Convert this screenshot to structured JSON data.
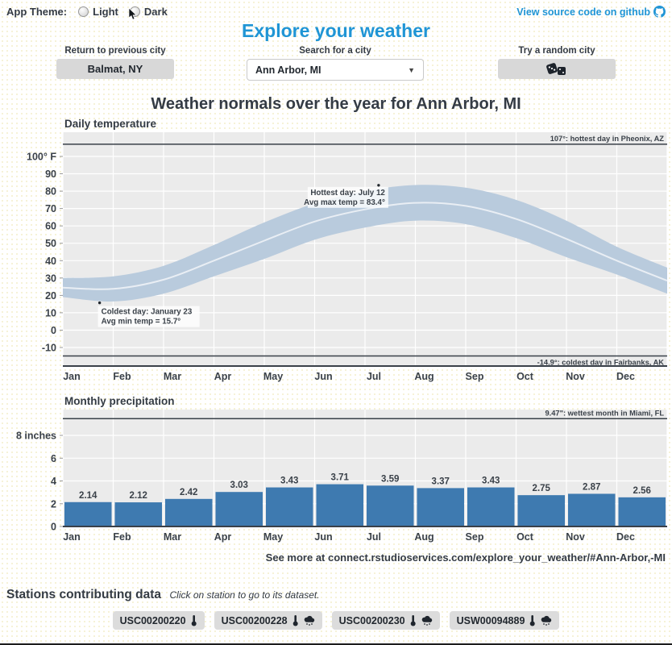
{
  "colors": {
    "accent": "#2095d5",
    "dark_text": "#343b44",
    "plot_bg": "#ebebeb",
    "grid": "#ffffff",
    "band": "#b9cbdd",
    "band_mid_line": "#e9eef4",
    "bar": "#3e7ab0",
    "button_bg": "#d8d8d8",
    "ref_line": "#3a4149"
  },
  "top_bar": {
    "theme_label": "App Theme:",
    "theme_options": [
      {
        "label": "Light"
      },
      {
        "label": "Dark"
      }
    ],
    "source_link": "View source code on github"
  },
  "app_title": "Explore your weather",
  "controls": {
    "previous": {
      "label": "Return to previous city",
      "button_text": "Balmat, NY"
    },
    "search": {
      "label": "Search for a city",
      "selected": "Ann Arbor, MI"
    },
    "random": {
      "label": "Try a random city"
    }
  },
  "page_heading": "Weather normals over the year for Ann Arbor, MI",
  "chart_data": [
    {
      "type": "area",
      "title": "Daily temperature",
      "x_labels": [
        "Jan",
        "Feb",
        "Mar",
        "Apr",
        "May",
        "Jun",
        "Jul",
        "Aug",
        "Sep",
        "Oct",
        "Nov",
        "Dec"
      ],
      "ylim": [
        -20,
        113
      ],
      "yticks": [
        {
          "v": 100,
          "label": "100° F"
        },
        {
          "v": 90,
          "label": "90"
        },
        {
          "v": 80,
          "label": "80"
        },
        {
          "v": 70,
          "label": "70"
        },
        {
          "v": 60,
          "label": "60"
        },
        {
          "v": 50,
          "label": "50"
        },
        {
          "v": 40,
          "label": "40"
        },
        {
          "v": 30,
          "label": "30"
        },
        {
          "v": 20,
          "label": "20"
        },
        {
          "v": 10,
          "label": "10"
        },
        {
          "v": 0,
          "label": "0"
        },
        {
          "v": -10,
          "label": "-10"
        }
      ],
      "series": [
        {
          "name": "avg max temp",
          "month_boundary_values": [
            30,
            31,
            37,
            49,
            62,
            73,
            80,
            83.5,
            82,
            75,
            63,
            48,
            36
          ]
        },
        {
          "name": "avg min temp",
          "month_boundary_values": [
            19,
            16.5,
            21,
            31,
            41,
            52,
            59,
            63,
            61,
            53,
            42,
            32,
            21
          ]
        }
      ],
      "markers": [
        {
          "name": "hottest-day-point",
          "month": 6.27,
          "temp": 83.4
        },
        {
          "name": "coldest-day-point",
          "month": 0.73,
          "temp": 15.7
        }
      ],
      "annotations": [
        {
          "name": "hottest-day-annotation",
          "lines": [
            "Hottest day: July 12",
            "Avg max temp = 83.4°"
          ]
        },
        {
          "name": "coldest-day-annotation",
          "lines": [
            "Coldest day: January 23",
            "Avg min temp = 15.7°"
          ]
        }
      ],
      "ref_lines": [
        {
          "value": 107,
          "label": "107°: hottest day in Pheonix, AZ",
          "label_pos": "above"
        },
        {
          "value": -14.9,
          "label": "-14.9°: coldest day in Fairbanks, AK",
          "label_pos": "below"
        }
      ]
    },
    {
      "type": "bar",
      "title": "Monthly precipitation",
      "categories": [
        "Jan",
        "Feb",
        "Mar",
        "Apr",
        "May",
        "Jun",
        "Jul",
        "Aug",
        "Sep",
        "Oct",
        "Nov",
        "Dec"
      ],
      "values": [
        2.14,
        2.12,
        2.42,
        3.03,
        3.43,
        3.71,
        3.59,
        3.37,
        3.43,
        2.75,
        2.87,
        2.56
      ],
      "ylim": [
        0,
        10.2
      ],
      "yticks": [
        {
          "v": 0,
          "label": "0"
        },
        {
          "v": 2,
          "label": "2"
        },
        {
          "v": 4,
          "label": "4"
        },
        {
          "v": 6,
          "label": "6"
        },
        {
          "v": 8,
          "label": "8 inches"
        }
      ],
      "ref_lines": [
        {
          "value": 9.47,
          "label": "9.47\": wettest month in Miami, FL",
          "label_pos": "above"
        }
      ]
    }
  ],
  "footer_note": "See more at connect.rstudioservices.com/explore_your_weather/#Ann-Arbor,-MI",
  "stations": {
    "heading": "Stations contributing data",
    "hint": "Click on station to go to its dataset.",
    "items": [
      {
        "id": "USC00200220",
        "icons": [
          "thermometer"
        ]
      },
      {
        "id": "USC00200228",
        "icons": [
          "thermometer",
          "rain-cloud"
        ]
      },
      {
        "id": "USC00200230",
        "icons": [
          "thermometer",
          "rain-cloud"
        ]
      },
      {
        "id": "USW00094889",
        "icons": [
          "thermometer",
          "rain-cloud"
        ]
      }
    ]
  }
}
